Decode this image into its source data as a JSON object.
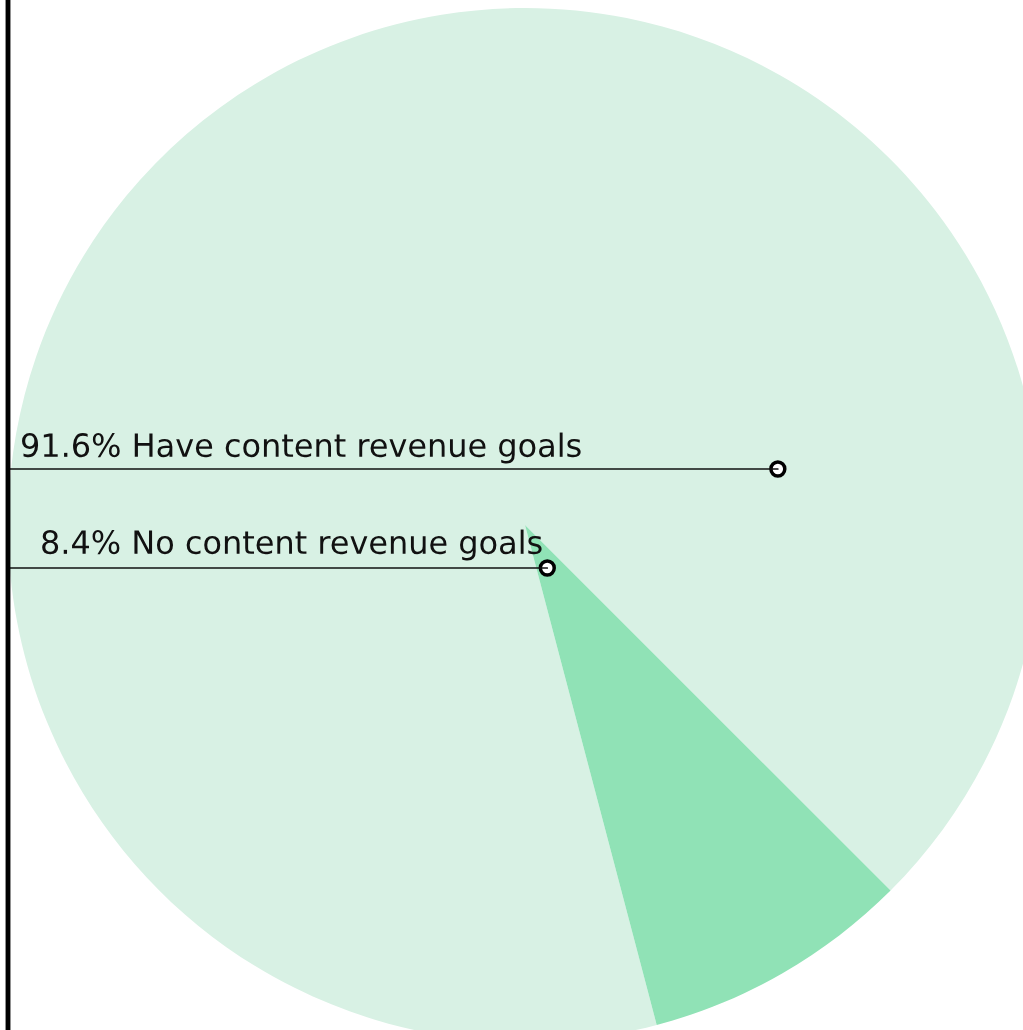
{
  "chart_data": {
    "type": "pie",
    "categories": [
      "Have content revenue goals",
      "No content revenue goals"
    ],
    "values": [
      91.6,
      8.4
    ],
    "value_labels": [
      "91.6%",
      "8.4%"
    ],
    "colors": [
      "#d8f1e4",
      "#90e2b6"
    ]
  }
}
